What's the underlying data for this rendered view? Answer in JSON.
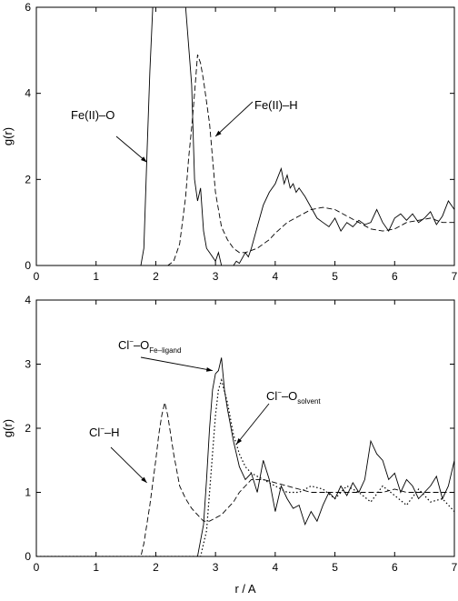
{
  "chart_data": [
    {
      "type": "line",
      "xlabel": "",
      "ylabel": "g(r)",
      "xlim": [
        0,
        7
      ],
      "ylim": [
        0,
        6
      ],
      "xticks": [
        "0",
        "1",
        "2",
        "3",
        "4",
        "5",
        "6",
        "7"
      ],
      "yticks": [
        "0",
        "2",
        "4",
        "6"
      ],
      "annotations": [
        {
          "text": "Fe(II)–O",
          "arrow_to": [
            1.85,
            2.4
          ]
        },
        {
          "text": "Fe(II)–H",
          "arrow_to": [
            3.0,
            3.0
          ]
        }
      ],
      "series": [
        {
          "name": "Fe(II)–O",
          "style": "solid",
          "x": [
            0,
            1.75,
            1.8,
            1.85,
            1.9,
            1.95,
            2.0,
            2.1,
            2.15,
            2.2,
            2.4,
            2.5,
            2.6,
            2.65,
            2.7,
            2.75,
            2.8,
            2.85,
            2.9,
            3.0,
            3.05,
            3.1,
            3.2,
            3.3,
            3.35,
            3.4,
            3.5,
            3.55,
            3.6,
            3.7,
            3.8,
            3.9,
            4.0,
            4.1,
            4.15,
            4.2,
            4.25,
            4.3,
            4.35,
            4.4,
            4.5,
            4.6,
            4.7,
            4.8,
            4.9,
            5.0,
            5.1,
            5.2,
            5.3,
            5.4,
            5.5,
            5.6,
            5.7,
            5.8,
            5.9,
            6.0,
            6.1,
            6.2,
            6.3,
            6.4,
            6.5,
            6.6,
            6.7,
            6.8,
            6.9,
            7.0
          ],
          "y": [
            0,
            0,
            0.4,
            2.5,
            4.5,
            6,
            6,
            6,
            6,
            6,
            6,
            6,
            4.2,
            2.0,
            1.5,
            1.8,
            0.8,
            0.4,
            0.3,
            0.1,
            0.3,
            0,
            0,
            0,
            0.1,
            0.05,
            0.3,
            0.2,
            0.4,
            0.9,
            1.4,
            1.7,
            1.9,
            2.25,
            1.9,
            2.1,
            1.8,
            1.9,
            1.7,
            1.8,
            1.6,
            1.35,
            1.1,
            1.0,
            0.9,
            1.1,
            0.8,
            1.0,
            0.9,
            1.05,
            0.95,
            1.0,
            1.3,
            1.0,
            0.8,
            1.1,
            1.2,
            1.05,
            1.2,
            1.0,
            1.1,
            1.25,
            0.95,
            1.15,
            1.5,
            1.3
          ]
        },
        {
          "name": "Fe(II)–H",
          "style": "dashed",
          "x": [
            0,
            2.2,
            2.3,
            2.4,
            2.5,
            2.55,
            2.6,
            2.65,
            2.7,
            2.75,
            2.8,
            2.9,
            3.0,
            3.1,
            3.2,
            3.3,
            3.4,
            3.5,
            3.6,
            3.7,
            3.8,
            3.9,
            4.0,
            4.2,
            4.4,
            4.6,
            4.8,
            5.0,
            5.2,
            5.4,
            5.6,
            5.8,
            6.0,
            6.2,
            6.4,
            6.6,
            6.8,
            7.0
          ],
          "y": [
            0,
            0,
            0.1,
            0.5,
            1.6,
            2.5,
            3.2,
            4.0,
            4.9,
            4.7,
            4.3,
            3.3,
            1.7,
            0.9,
            0.6,
            0.4,
            0.3,
            0.3,
            0.35,
            0.4,
            0.5,
            0.6,
            0.75,
            1.0,
            1.15,
            1.3,
            1.35,
            1.3,
            1.15,
            1.0,
            0.85,
            0.8,
            0.85,
            1.0,
            1.05,
            1.1,
            1.0,
            1.0
          ]
        }
      ]
    },
    {
      "type": "line",
      "xlabel": "r / A",
      "ylabel": "g(r)",
      "xlim": [
        0,
        7
      ],
      "ylim": [
        0,
        4
      ],
      "xticks": [
        "0",
        "1",
        "2",
        "3",
        "4",
        "5",
        "6",
        "7"
      ],
      "yticks": [
        "0",
        "1",
        "2",
        "3",
        "4"
      ],
      "annotations": [
        {
          "text": "Cl−–O",
          "sub": "Fe–ligand",
          "arrow_to": [
            2.95,
            2.9
          ]
        },
        {
          "text": "Cl−–O",
          "sub": "solvent",
          "arrow_to": [
            3.35,
            1.75
          ]
        },
        {
          "text": "Cl−–H",
          "arrow_to": [
            1.85,
            1.15
          ]
        }
      ],
      "series": [
        {
          "name": "Cl−–O Fe–ligand",
          "style": "solid",
          "x": [
            0,
            2.7,
            2.8,
            2.85,
            2.9,
            2.95,
            3.0,
            3.05,
            3.1,
            3.15,
            3.2,
            3.3,
            3.4,
            3.5,
            3.6,
            3.7,
            3.8,
            3.9,
            4.0,
            4.1,
            4.2,
            4.3,
            4.4,
            4.5,
            4.6,
            4.7,
            4.8,
            4.9,
            5.0,
            5.1,
            5.2,
            5.3,
            5.4,
            5.5,
            5.6,
            5.7,
            5.8,
            5.9,
            6.0,
            6.1,
            6.2,
            6.3,
            6.4,
            6.5,
            6.6,
            6.7,
            6.8,
            6.9,
            7.0
          ],
          "y": [
            0,
            0,
            0.5,
            1.2,
            2.0,
            2.6,
            2.85,
            2.9,
            3.1,
            2.6,
            2.3,
            1.8,
            1.4,
            1.2,
            1.3,
            1.0,
            1.5,
            1.2,
            0.7,
            1.1,
            0.9,
            0.75,
            0.8,
            0.5,
            0.7,
            0.55,
            0.8,
            1.0,
            0.9,
            1.1,
            0.95,
            1.15,
            1.0,
            1.2,
            1.8,
            1.6,
            1.5,
            1.2,
            1.3,
            1.0,
            1.2,
            1.1,
            0.9,
            1.0,
            1.1,
            1.25,
            0.9,
            1.1,
            1.5
          ]
        },
        {
          "name": "Cl−–O solvent",
          "style": "dotted",
          "x": [
            0,
            2.75,
            2.85,
            2.9,
            3.0,
            3.05,
            3.1,
            3.2,
            3.3,
            3.4,
            3.5,
            3.6,
            3.8,
            4.0,
            4.2,
            4.4,
            4.6,
            4.8,
            5.0,
            5.2,
            5.4,
            5.6,
            5.8,
            6.0,
            6.2,
            6.4,
            6.6,
            6.8,
            7.0
          ],
          "y": [
            0,
            0,
            0.4,
            1.0,
            2.2,
            2.6,
            2.75,
            2.4,
            1.9,
            1.6,
            1.4,
            1.3,
            1.2,
            1.1,
            1.0,
            1.0,
            1.1,
            1.05,
            0.9,
            1.1,
            1.0,
            0.85,
            1.1,
            0.95,
            0.8,
            1.05,
            0.85,
            0.9,
            0.7
          ]
        },
        {
          "name": "Cl−–H",
          "style": "dashed",
          "x": [
            0,
            1.75,
            1.8,
            1.9,
            2.0,
            2.05,
            2.1,
            2.15,
            2.2,
            2.3,
            2.4,
            2.5,
            2.6,
            2.7,
            2.8,
            2.9,
            3.0,
            3.1,
            3.2,
            3.3,
            3.4,
            3.5,
            3.6,
            3.8,
            4.0,
            4.2,
            4.4,
            4.6,
            4.8,
            5.0,
            5.2,
            5.4,
            5.6,
            5.8,
            6.0,
            6.2,
            6.4,
            6.6,
            6.8,
            7.0
          ],
          "y": [
            0,
            0,
            0.2,
            0.8,
            1.5,
            1.9,
            2.2,
            2.4,
            2.2,
            1.6,
            1.1,
            0.9,
            0.75,
            0.65,
            0.55,
            0.55,
            0.6,
            0.65,
            0.75,
            0.85,
            1.0,
            1.1,
            1.2,
            1.2,
            1.15,
            1.1,
            1.05,
            1.0,
            1.0,
            1.0,
            1.0,
            1.0,
            1.0,
            1.0,
            1.05,
            1.0,
            1.0,
            1.0,
            1.0,
            1.0
          ]
        }
      ]
    }
  ]
}
